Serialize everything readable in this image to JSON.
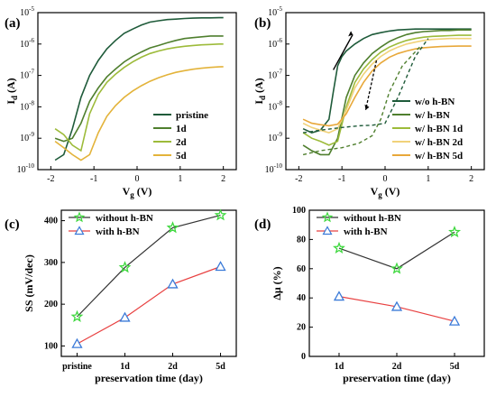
{
  "chart_data": [
    {
      "panel": "(a)",
      "type": "line",
      "xlabel": "V",
      "xlabel_sub": "g",
      "xlabel_unit": " (V)",
      "ylabel": "I",
      "ylabel_sub": "d",
      "ylabel_unit": " (A)",
      "xlim": [
        -2.3,
        2.3
      ],
      "xticks": [
        -2,
        -1,
        0,
        1,
        2
      ],
      "yscale": "log",
      "ylim_exp": [
        -10,
        -5
      ],
      "yticks_exp": [
        -10,
        -9,
        -8,
        -7,
        -6,
        -5
      ],
      "legend_position": "bottom-right",
      "series": [
        {
          "name": "pristine",
          "color": "#1f5b3a",
          "x": [
            -1.9,
            -1.7,
            -1.5,
            -1.3,
            -1.1,
            -0.9,
            -0.7,
            -0.5,
            -0.3,
            -0.1,
            0.1,
            0.3,
            0.5,
            0.7,
            0.9,
            1.1,
            1.3,
            1.5,
            1.7,
            1.9,
            2.0
          ],
          "y": [
            2e-10,
            3e-10,
            2e-09,
            2e-08,
            1e-07,
            3e-07,
            7e-07,
            1.3e-06,
            2.2e-06,
            3e-06,
            4e-06,
            5e-06,
            5.5e-06,
            6e-06,
            6.2e-06,
            6.5e-06,
            6.7e-06,
            6.8e-06,
            6.8e-06,
            6.9e-06,
            6.9e-06
          ]
        },
        {
          "name": "1d",
          "color": "#4f7f2e",
          "x": [
            -1.9,
            -1.7,
            -1.5,
            -1.3,
            -1.1,
            -0.9,
            -0.7,
            -0.5,
            -0.3,
            -0.1,
            0.1,
            0.3,
            0.5,
            0.7,
            0.9,
            1.1,
            1.3,
            1.5,
            1.7,
            1.9,
            2.0
          ],
          "y": [
            1e-09,
            8e-10,
            1e-09,
            3e-09,
            1.5e-08,
            4e-08,
            9e-08,
            1.6e-07,
            2.7e-07,
            4e-07,
            5.6e-07,
            7.5e-07,
            9e-07,
            1.1e-06,
            1.3e-06,
            1.5e-06,
            1.6e-06,
            1.7e-06,
            1.8e-06,
            1.8e-06,
            1.8e-06
          ]
        },
        {
          "name": "2d",
          "color": "#9dbb3a",
          "x": [
            -1.9,
            -1.7,
            -1.5,
            -1.3,
            -1.1,
            -0.9,
            -0.7,
            -0.5,
            -0.3,
            -0.1,
            0.1,
            0.3,
            0.5,
            0.7,
            0.9,
            1.1,
            1.3,
            1.5,
            1.7,
            1.9,
            2.0
          ],
          "y": [
            2e-09,
            1.3e-09,
            6e-10,
            4e-10,
            6e-09,
            2.5e-08,
            6e-08,
            1.1e-07,
            1.8e-07,
            2.7e-07,
            3.8e-07,
            5e-07,
            6e-07,
            7e-07,
            7.8e-07,
            8.5e-07,
            9e-07,
            9.4e-07,
            9.7e-07,
            1e-06,
            1e-06
          ]
        },
        {
          "name": "5d",
          "color": "#e3b33a",
          "x": [
            -1.9,
            -1.7,
            -1.5,
            -1.3,
            -1.1,
            -0.9,
            -0.7,
            -0.5,
            -0.3,
            -0.1,
            0.1,
            0.3,
            0.5,
            0.7,
            0.9,
            1.1,
            1.3,
            1.5,
            1.7,
            1.9,
            2.0
          ],
          "y": [
            8e-10,
            5e-10,
            3e-10,
            2e-10,
            3e-10,
            1.5e-09,
            5e-09,
            1.1e-08,
            2e-08,
            3.2e-08,
            4.7e-08,
            6.5e-08,
            8.5e-08,
            1.05e-07,
            1.25e-07,
            1.42e-07,
            1.58e-07,
            1.7e-07,
            1.8e-07,
            1.88e-07,
            1.9e-07
          ]
        }
      ]
    },
    {
      "panel": "(b)",
      "type": "line",
      "xlabel": "V",
      "xlabel_sub": "g",
      "xlabel_unit": " (V)",
      "ylabel": "I",
      "ylabel_sub": "d",
      "ylabel_unit": " (A)",
      "xlim": [
        -2.3,
        2.3
      ],
      "xticks": [
        -2,
        -1,
        0,
        1,
        2
      ],
      "yscale": "log",
      "ylim_exp": [
        -10,
        -5
      ],
      "yticks_exp": [
        -10,
        -9,
        -8,
        -7,
        -6,
        -5
      ],
      "legend_position": "bottom-right",
      "series": [
        {
          "name": "w/o h-BN",
          "color": "#1f5b3a",
          "x": [
            -1.9,
            -1.7,
            -1.5,
            -1.3,
            -1.2,
            -1.1,
            -1.0,
            -0.9,
            -0.7,
            -0.5,
            -0.3,
            -0.1,
            0.1,
            0.3,
            0.5,
            0.7,
            0.9,
            1.1,
            1.3,
            1.5,
            1.7,
            1.9,
            2.0
          ],
          "y": [
            2e-09,
            1.5e-09,
            1.8e-09,
            4e-09,
            3e-08,
            2e-07,
            4e-07,
            6e-07,
            1e-06,
            1.5e-06,
            2e-06,
            2.3e-06,
            2.6e-06,
            2.8e-06,
            2.9e-06,
            3e-06,
            3e-06,
            3e-06,
            3e-06,
            3e-06,
            3e-06,
            3e-06,
            3e-06
          ]
        },
        {
          "name": "w/ h-BN",
          "color": "#4f7f2e",
          "x": [
            -1.9,
            -1.7,
            -1.5,
            -1.3,
            -1.1,
            -0.9,
            -0.7,
            -0.5,
            -0.3,
            -0.1,
            0.1,
            0.3,
            0.5,
            0.7,
            0.9,
            1.1,
            1.3,
            1.5,
            1.7,
            1.9,
            2.0
          ],
          "y": [
            6e-10,
            4e-10,
            3e-10,
            3e-10,
            1e-09,
            2e-08,
            1e-07,
            2.5e-07,
            5e-07,
            8e-07,
            1.2e-06,
            1.6e-06,
            2e-06,
            2.3e-06,
            2.5e-06,
            2.6e-06,
            2.7e-06,
            2.7e-06,
            2.8e-06,
            2.8e-06,
            2.8e-06
          ]
        },
        {
          "name": "w/ h-BN 1d",
          "color": "#9dbb3a",
          "x": [
            -1.9,
            -1.7,
            -1.5,
            -1.3,
            -1.1,
            -0.9,
            -0.7,
            -0.5,
            -0.3,
            -0.1,
            0.1,
            0.3,
            0.5,
            0.7,
            0.9,
            1.1,
            1.3,
            1.5,
            1.7,
            1.9,
            2.0
          ],
          "y": [
            1.5e-09,
            1e-09,
            8e-10,
            6e-10,
            8e-10,
            1e-08,
            6e-08,
            1.6e-07,
            3.2e-07,
            5.5e-07,
            8e-07,
            1.05e-06,
            1.3e-06,
            1.5e-06,
            1.65e-06,
            1.75e-06,
            1.8e-06,
            1.85e-06,
            1.9e-06,
            1.9e-06,
            1.9e-06
          ]
        },
        {
          "name": "w/ h-BN 2d",
          "color": "#f1d27a",
          "x": [
            -1.9,
            -1.7,
            -1.5,
            -1.3,
            -1.1,
            -0.9,
            -0.7,
            -0.5,
            -0.3,
            -0.1,
            0.1,
            0.3,
            0.5,
            0.7,
            0.9,
            1.1,
            1.3,
            1.5,
            1.7,
            1.9,
            2.0
          ],
          "y": [
            3e-09,
            2.2e-09,
            1.8e-09,
            1.5e-09,
            2e-09,
            8e-09,
            4e-08,
            1.1e-07,
            2.3e-07,
            4e-07,
            6e-07,
            8e-07,
            1e-06,
            1.15e-06,
            1.3e-06,
            1.4e-06,
            1.45e-06,
            1.5e-06,
            1.5e-06,
            1.5e-06,
            1.5e-06
          ]
        },
        {
          "name": "w/ h-BN 5d",
          "color": "#e8a83a",
          "x": [
            -1.9,
            -1.7,
            -1.5,
            -1.3,
            -1.1,
            -0.9,
            -0.7,
            -0.5,
            -0.3,
            -0.1,
            0.1,
            0.3,
            0.5,
            0.7,
            0.9,
            1.1,
            1.3,
            1.5,
            1.7,
            1.9,
            2.0
          ],
          "y": [
            4e-09,
            3e-09,
            2.7e-09,
            2.5e-09,
            2.8e-09,
            6e-09,
            2e-08,
            6e-08,
            1.4e-07,
            2.5e-07,
            3.8e-07,
            5e-07,
            6e-07,
            7e-07,
            7.6e-07,
            8e-07,
            8.3e-07,
            8.5e-07,
            8.6e-07,
            8.6e-07,
            8.6e-07
          ]
        }
      ],
      "reverse_sweeps": [
        {
          "color": "#1f5b3a",
          "x": [
            -1.9,
            -1.5,
            -1.0,
            -0.6,
            -0.3,
            0.0,
            0.3,
            0.7,
            1.0
          ],
          "y": [
            1.5e-09,
            1.8e-09,
            2.2e-09,
            2.5e-09,
            2.6e-09,
            3e-09,
            2e-08,
            4e-07,
            1.5e-06
          ]
        },
        {
          "color": "#4f7f2e",
          "x": [
            -1.9,
            -1.5,
            -1.0,
            -0.6,
            -0.3,
            -0.1,
            0.1,
            0.4,
            0.8
          ],
          "y": [
            3e-10,
            4e-10,
            5e-10,
            7e-10,
            1.2e-09,
            4e-09,
            3e-08,
            2e-07,
            8e-07
          ]
        }
      ]
    },
    {
      "panel": "(c)",
      "type": "line",
      "xlabel": "preservation time (day)",
      "ylabel": "SS (mV/dec)",
      "categories": [
        "pristine",
        "1d",
        "2d",
        "5d"
      ],
      "ylim": [
        75,
        425
      ],
      "yticks": [
        100,
        200,
        300,
        400
      ],
      "legend_position": "top-left",
      "series": [
        {
          "name": "without h-BN",
          "color": "#333333",
          "marker": "star",
          "marker_color": "#3fd83f",
          "values": [
            170,
            288,
            383,
            413
          ]
        },
        {
          "name": "with h-BN",
          "color": "#e84040",
          "marker": "triangle",
          "marker_color": "#3a7ad8",
          "values": [
            105,
            168,
            248,
            290
          ]
        }
      ]
    },
    {
      "panel": "(d)",
      "type": "line",
      "xlabel": "preservation time (day)",
      "ylabel": "Δμ (%)",
      "categories": [
        "1d",
        "2d",
        "5d"
      ],
      "ylim": [
        0,
        100
      ],
      "yticks": [
        0,
        20,
        40,
        60,
        80,
        100
      ],
      "legend_position": "top-left",
      "series": [
        {
          "name": "without h-BN",
          "color": "#333333",
          "marker": "star",
          "marker_color": "#3fd83f",
          "values": [
            74,
            60,
            85
          ]
        },
        {
          "name": "with h-BN",
          "color": "#e84040",
          "marker": "triangle",
          "marker_color": "#3a7ad8",
          "values": [
            41,
            34,
            24
          ]
        }
      ]
    }
  ]
}
